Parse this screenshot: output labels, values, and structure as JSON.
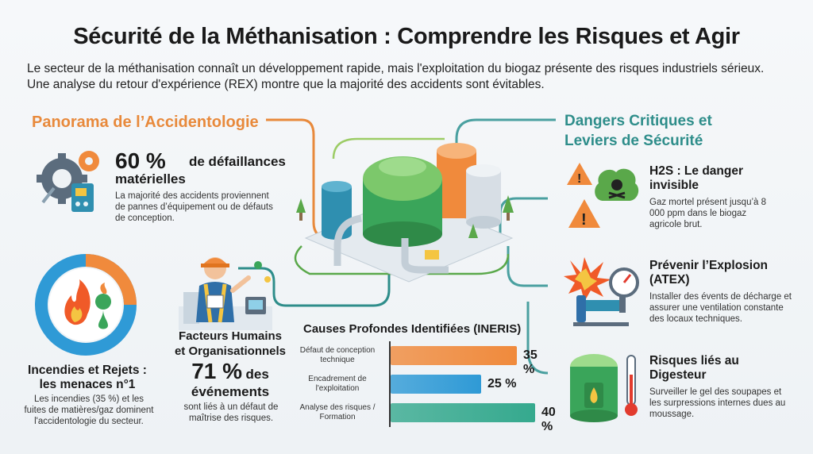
{
  "title": "Sécurité de la Méthanisation : Comprendre les Risques et Agir",
  "intro": "Le secteur de la méthanisation connaît un développement rapide, mais l'exploitation du biogaz présente des risques industriels sérieux. Une analyse du retour d'expérience (REX) montre que la majorité des accidents sont évitables.",
  "left_section": {
    "heading": "Panorama de l’Accidentologie",
    "materiel": {
      "stat": "60 %",
      "stat_rest": "de défaillances",
      "stat_line2": "matérielles",
      "desc": "La majorité des accidents proviennent de pannes d’équipement ou de défauts de conception."
    },
    "incendies": {
      "title_line1": "Incendies et Rejets :",
      "title_line2": "les menaces n°1",
      "desc": "Les incendies (35 %) et les fuites de matières/gaz dominent l'accidentologie du secteur."
    },
    "facteurs": {
      "title_line1": "Facteurs Humains",
      "title_line2": "et Organisationnels",
      "stat": "71 %",
      "stat_rest": "des",
      "stat_line2": "événements",
      "desc": "sont liés à un défaut de maîtrise des risques."
    }
  },
  "right_section": {
    "heading_line1": "Dangers Critiques et",
    "heading_line2": "Leviers de Sécurité",
    "items": [
      {
        "title_line1": "H2S : Le danger",
        "title_line2": "invisible",
        "desc": "Gaz mortel présent jusqu’à 8 000 ppm dans le biogaz agricole brut.",
        "icon": "toxic-gas-icon"
      },
      {
        "title_line1": "Prévenir l’Explosion",
        "title_line2": "(ATEX)",
        "desc": "Installer des évents de décharge et assurer une ventilation constante des locaux techniques.",
        "icon": "explosion-gauge-icon"
      },
      {
        "title_line1": "Risques liés au",
        "title_line2": "Digesteur",
        "desc": "Surveiller le gel des soupapes et les surpressions internes dues au moussage.",
        "icon": "digester-thermometer-icon"
      }
    ]
  },
  "chart_data": {
    "type": "bar",
    "title": "Causes Profondes Identifiées (INERIS)",
    "categories": [
      "Défaut de conception technique",
      "Encadrement de l'exploitation",
      "Analyse des risques / Formation"
    ],
    "category_lines": [
      [
        "Défaut de conception",
        "technique"
      ],
      [
        "Encadrement de",
        "l'exploitation"
      ],
      [
        "Analyse des risques /",
        "Formation"
      ]
    ],
    "values": [
      35,
      25,
      40
    ],
    "value_labels": [
      "35 %",
      "25 %",
      "40 %"
    ],
    "colors": [
      "#f08a3c",
      "#2f9ad6",
      "#35a98e"
    ],
    "orientation": "horizontal"
  },
  "colors": {
    "orange": "#e8893b",
    "teal": "#2e8d8a",
    "green": "#5aa84a"
  }
}
